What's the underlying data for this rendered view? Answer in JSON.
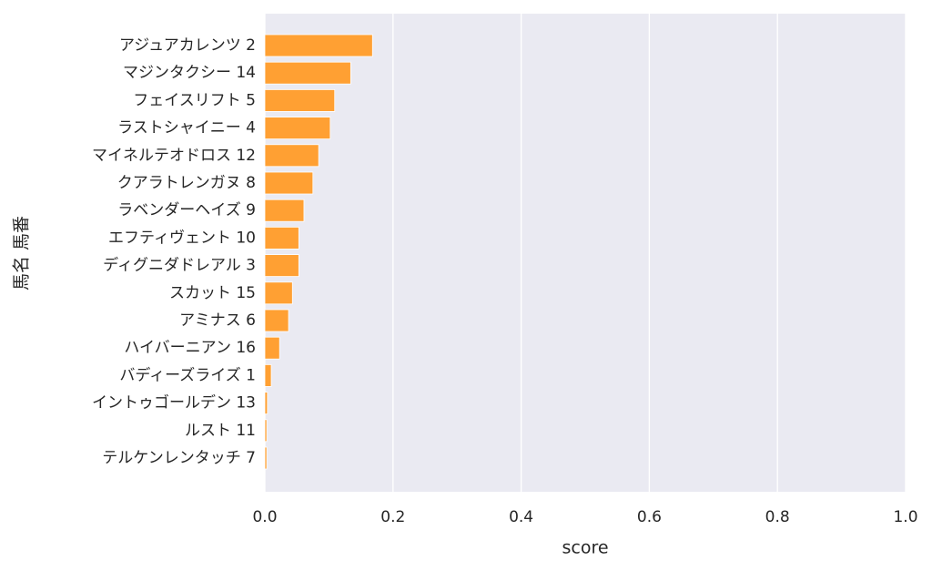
{
  "chart_data": {
    "type": "barh",
    "categories": [
      "アジュアカレンツ 2",
      "マジンタクシー 14",
      "フェイスリフト 5",
      "ラストシャイニー 4",
      "マイネルテオドロス 12",
      "クアラトレンガヌ 8",
      "ラベンダーヘイズ 9",
      "エフティヴェント 10",
      "ディグニダドレアル 3",
      "スカット 15",
      "アミナス 6",
      "ハイバーニアン 16",
      "バディーズライズ 1",
      "イントゥゴールデン 13",
      "ルスト 11",
      "テルケンレンタッチ 7"
    ],
    "values": [
      0.168,
      0.134,
      0.109,
      0.102,
      0.084,
      0.075,
      0.061,
      0.053,
      0.053,
      0.043,
      0.037,
      0.023,
      0.01,
      0.004,
      0.003,
      0.003
    ],
    "color": "#ffa033",
    "xlim": [
      0,
      1
    ],
    "xticks": [
      {
        "value": 0,
        "label": "0.0"
      },
      0.2,
      0.4,
      0.6,
      0.8,
      {
        "value": 1,
        "label": "1.0"
      }
    ],
    "xlabel": "score",
    "ylabel": "馬名 馬番",
    "grid": true
  }
}
